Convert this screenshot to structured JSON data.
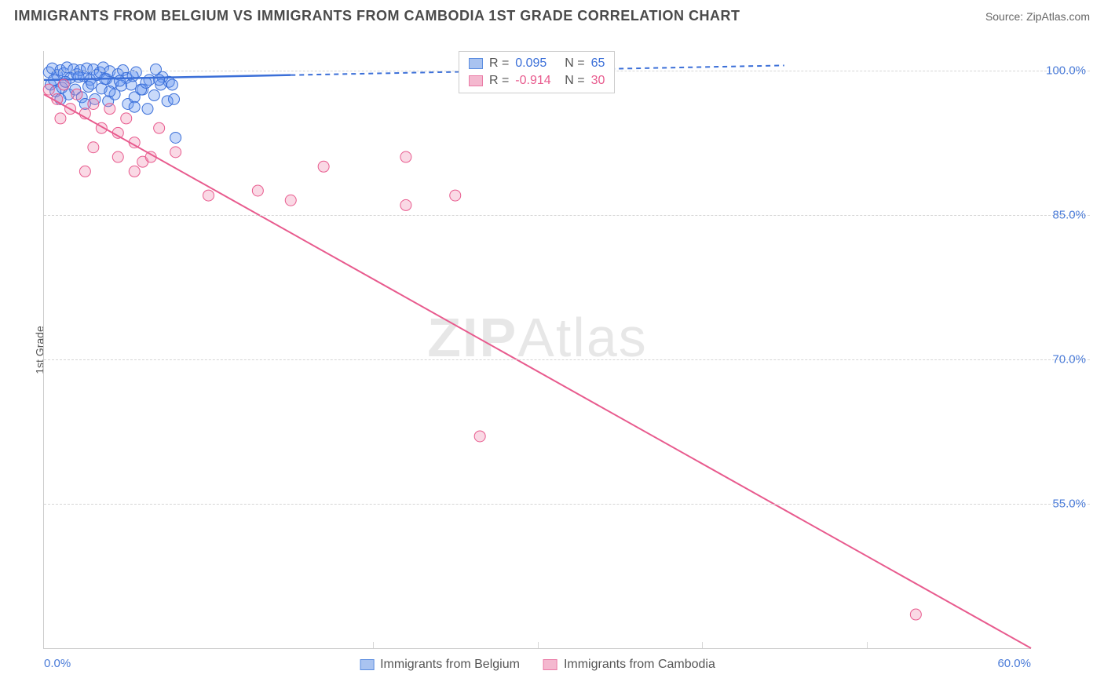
{
  "title": "IMMIGRANTS FROM BELGIUM VS IMMIGRANTS FROM CAMBODIA 1ST GRADE CORRELATION CHART",
  "source_label": "Source: ZipAtlas.com",
  "y_axis_label": "1st Grade",
  "watermark_bold": "ZIP",
  "watermark_light": "Atlas",
  "chart": {
    "type": "scatter",
    "background_color": "#ffffff",
    "grid_color": "#d5d5d5",
    "axis_color": "#cccccc",
    "tick_color": "#4a7bd8",
    "xlim": [
      0,
      60
    ],
    "ylim": [
      40,
      102
    ],
    "x_ticks": [
      {
        "pos": 0,
        "label": "0.0%"
      },
      {
        "pos": 60,
        "label": "60.0%"
      }
    ],
    "x_minor_ticks": [
      20,
      30,
      40,
      50
    ],
    "y_ticks": [
      {
        "pos": 100,
        "label": "100.0%"
      },
      {
        "pos": 85,
        "label": "85.0%"
      },
      {
        "pos": 70,
        "label": "70.0%"
      },
      {
        "pos": 55,
        "label": "55.0%"
      }
    ],
    "y_grid_extra": [
      25
    ]
  },
  "series": [
    {
      "id": "belgium",
      "label": "Immigrants from Belgium",
      "color_fill": "rgba(100,150,240,0.35)",
      "color_stroke": "#3b6fd8",
      "swatch_fill": "#a9c3f0",
      "swatch_border": "#5b8de0",
      "r_value": "0.095",
      "n_value": "65",
      "stat_color": "#3b6fd8",
      "marker_radius": 7,
      "points": [
        [
          0.3,
          99.8
        ],
        [
          0.5,
          100.2
        ],
        [
          0.8,
          99.5
        ],
        [
          1.0,
          100.0
        ],
        [
          1.2,
          99.7
        ],
        [
          1.4,
          100.3
        ],
        [
          1.6,
          99.2
        ],
        [
          1.8,
          100.1
        ],
        [
          2.0,
          99.6
        ],
        [
          2.2,
          100.0
        ],
        [
          2.4,
          99.4
        ],
        [
          2.6,
          100.2
        ],
        [
          2.8,
          99.0
        ],
        [
          3.0,
          100.1
        ],
        [
          3.2,
          99.5
        ],
        [
          3.4,
          99.8
        ],
        [
          3.6,
          100.3
        ],
        [
          3.8,
          99.1
        ],
        [
          4.0,
          99.9
        ],
        [
          4.2,
          98.7
        ],
        [
          4.5,
          99.6
        ],
        [
          4.8,
          100.0
        ],
        [
          5.0,
          99.2
        ],
        [
          5.3,
          98.5
        ],
        [
          5.6,
          99.8
        ],
        [
          6.0,
          98.0
        ],
        [
          6.4,
          99.0
        ],
        [
          6.8,
          100.1
        ],
        [
          7.2,
          99.3
        ],
        [
          7.6,
          98.8
        ],
        [
          8.0,
          93.0
        ],
        [
          0.4,
          98.5
        ],
        [
          0.7,
          97.8
        ],
        [
          1.1,
          98.2
        ],
        [
          1.5,
          97.5
        ],
        [
          1.9,
          98.0
        ],
        [
          2.3,
          97.2
        ],
        [
          2.7,
          98.3
        ],
        [
          3.1,
          97.0
        ],
        [
          3.5,
          98.1
        ],
        [
          3.9,
          96.8
        ],
        [
          4.3,
          97.5
        ],
        [
          4.7,
          98.4
        ],
        [
          5.1,
          96.5
        ],
        [
          5.5,
          97.2
        ],
        [
          5.9,
          98.0
        ],
        [
          6.3,
          96.0
        ],
        [
          6.7,
          97.4
        ],
        [
          7.1,
          98.5
        ],
        [
          7.5,
          96.8
        ],
        [
          7.9,
          97.0
        ],
        [
          0.6,
          99.0
        ],
        [
          1.3,
          98.8
        ],
        [
          2.1,
          99.3
        ],
        [
          2.9,
          98.6
        ],
        [
          3.7,
          99.1
        ],
        [
          4.6,
          98.9
        ],
        [
          5.4,
          99.4
        ],
        [
          6.2,
          98.7
        ],
        [
          7.0,
          99.0
        ],
        [
          7.8,
          98.5
        ],
        [
          1.0,
          97.0
        ],
        [
          2.5,
          96.5
        ],
        [
          4.0,
          97.8
        ],
        [
          5.5,
          96.2
        ]
      ],
      "trend_line": {
        "x1": 0,
        "y1": 99.0,
        "x2": 15,
        "y2": 99.5,
        "dash_from_x": 15,
        "dash_to_x": 45,
        "dash_to_y": 100.5,
        "width": 2.5
      }
    },
    {
      "id": "cambodia",
      "label": "Immigrants from Cambodia",
      "color_fill": "rgba(240,130,170,0.30)",
      "color_stroke": "#e85b8e",
      "swatch_fill": "#f4b8cf",
      "swatch_border": "#ea7ba6",
      "r_value": "-0.914",
      "n_value": "30",
      "stat_color": "#e85b8e",
      "marker_radius": 7,
      "points": [
        [
          0.3,
          98.0
        ],
        [
          0.8,
          97.0
        ],
        [
          1.2,
          98.5
        ],
        [
          1.6,
          96.0
        ],
        [
          2.0,
          97.5
        ],
        [
          2.5,
          95.5
        ],
        [
          3.0,
          96.5
        ],
        [
          3.5,
          94.0
        ],
        [
          4.0,
          96.0
        ],
        [
          4.5,
          93.5
        ],
        [
          5.0,
          95.0
        ],
        [
          5.5,
          92.5
        ],
        [
          6.0,
          90.5
        ],
        [
          7.0,
          94.0
        ],
        [
          8.0,
          91.5
        ],
        [
          3.0,
          92.0
        ],
        [
          4.5,
          91.0
        ],
        [
          6.5,
          91.0
        ],
        [
          2.5,
          89.5
        ],
        [
          5.5,
          89.5
        ],
        [
          10.0,
          87.0
        ],
        [
          13.0,
          87.5
        ],
        [
          15.0,
          86.5
        ],
        [
          17.0,
          90.0
        ],
        [
          22.0,
          91.0
        ],
        [
          25.0,
          87.0
        ],
        [
          22.0,
          86.0
        ],
        [
          26.5,
          62.0
        ],
        [
          53.0,
          43.5
        ],
        [
          1.0,
          95.0
        ]
      ],
      "trend_line": {
        "x1": 0,
        "y1": 97.5,
        "x2": 60,
        "y2": 40.0,
        "width": 2
      }
    }
  ],
  "legend_box": {
    "r_label": "R =",
    "n_label": "N ="
  }
}
